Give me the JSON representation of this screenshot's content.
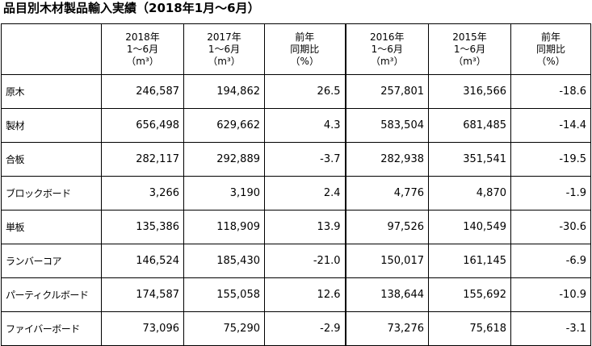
{
  "title": "品目別木材製品輸入実績（2018年1月～6月）",
  "headers": [
    {
      "lines": [
        "",
        "",
        ""
      ]
    },
    {
      "lines": [
        "2018年",
        "1～6月",
        "（m³）"
      ]
    },
    {
      "lines": [
        "2017年",
        "1～6月",
        "（m³）"
      ]
    },
    {
      "lines": [
        "前年",
        "同期比",
        "（%）"
      ]
    },
    {
      "lines": [
        "2016年",
        "1～6月",
        "（m³）"
      ]
    },
    {
      "lines": [
        "2015年",
        "1～6月",
        "（m³）"
      ]
    },
    {
      "lines": [
        "前年",
        "同期比",
        "（%）"
      ]
    }
  ],
  "rows": [
    {
      "cat": "原木",
      "y2018": "246,587",
      "y2017": "194,862",
      "yoy1": "26.5",
      "y2016": "257,801",
      "y2015": "316,566",
      "yoy2": "-18.6"
    },
    {
      "cat": "製材",
      "y2018": "656,498",
      "y2017": "629,662",
      "yoy1": "4.3",
      "y2016": "583,504",
      "y2015": "681,485",
      "yoy2": "-14.4"
    },
    {
      "cat": "合板",
      "y2018": "282,117",
      "y2017": "292,889",
      "yoy1": "-3.7",
      "y2016": "282,938",
      "y2015": "351,541",
      "yoy2": "-19.5"
    },
    {
      "cat": "ブロックボード",
      "y2018": "3,266",
      "y2017": "3,190",
      "yoy1": "2.4",
      "y2016": "4,776",
      "y2015": "4,870",
      "yoy2": "-1.9"
    },
    {
      "cat": "単板",
      "y2018": "135,386",
      "y2017": "118,909",
      "yoy1": "13.9",
      "y2016": "97,526",
      "y2015": "140,549",
      "yoy2": "-30.6"
    },
    {
      "cat": "ランバーコア",
      "y2018": "146,524",
      "y2017": "185,430",
      "yoy1": "-21.0",
      "y2016": "150,017",
      "y2015": "161,145",
      "yoy2": "-6.9"
    },
    {
      "cat": "パーティクルボード",
      "y2018": "174,587",
      "y2017": "155,058",
      "yoy1": "12.6",
      "y2016": "138,644",
      "y2015": "155,692",
      "yoy2": "-10.9"
    },
    {
      "cat": "ファイバーボード",
      "y2018": "73,096",
      "y2017": "75,290",
      "yoy1": "-2.9",
      "y2016": "73,276",
      "y2015": "75,618",
      "yoy2": "-3.1"
    }
  ]
}
